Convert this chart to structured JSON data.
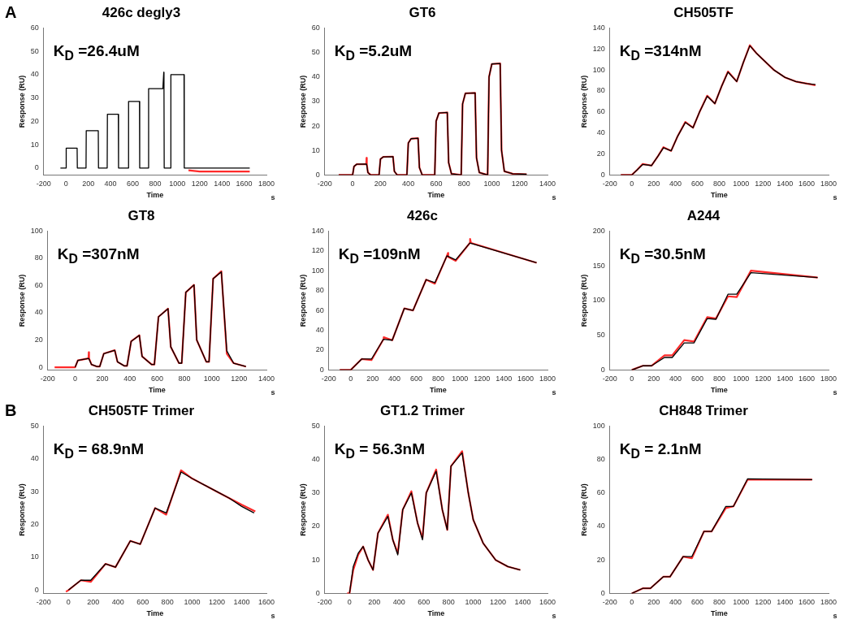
{
  "chart_data": [
    {
      "type": "line",
      "title": "426c degly3",
      "subtitle": "K$_{D}$ =26.4uM",
      "xlabel": "Time",
      "ylabel": "Response (RU)",
      "annotations": [
        "A",
        "s"
      ],
      "xlim": [
        -200,
        1800
      ],
      "xticks": [
        -200,
        0,
        200,
        400,
        600,
        800,
        1000,
        1200,
        1400,
        1600,
        1800
      ],
      "ylim": [
        -3,
        60
      ],
      "yticks": [
        0,
        10,
        20,
        30,
        40,
        50,
        60
      ],
      "grid": false,
      "series": [
        {
          "color": "#ff2a2a",
          "x": [
            1100,
            1200,
            1650
          ],
          "values": [
            -1,
            -1.5,
            -1.5
          ]
        },
        {
          "color": "#000000",
          "x": [
            -50,
            0,
            2,
            100,
            102,
            180,
            182,
            290,
            292,
            370,
            372,
            470,
            472,
            560,
            562,
            660,
            662,
            740,
            742,
            870,
            878,
            880,
            882,
            940,
            942,
            1060,
            1062,
            1100,
            1650
          ],
          "values": [
            0,
            0,
            8.5,
            8.5,
            0,
            0,
            16,
            16,
            0,
            0,
            23,
            23,
            0,
            0,
            28.5,
            28.5,
            0,
            0,
            34,
            34,
            41,
            34,
            0,
            0,
            40,
            40,
            0,
            0,
            0
          ]
        }
      ]
    },
    {
      "type": "line",
      "title": "GT6",
      "subtitle": "K$_{D}$ =5.2uM",
      "xlabel": "Time",
      "ylabel": "Response (RU)",
      "annotations": [
        "s"
      ],
      "xlim": [
        -200,
        1400
      ],
      "xticks": [
        -200,
        0,
        200,
        400,
        600,
        800,
        1000,
        1200,
        1400
      ],
      "ylim": [
        0,
        60
      ],
      "yticks": [
        0,
        10,
        20,
        30,
        40,
        50,
        60
      ],
      "grid": false,
      "series": [
        {
          "color": "#ff2a2a",
          "x": [
            -100,
            0,
            10,
            30,
            98,
            100,
            102,
            110,
            130,
            190,
            200,
            220,
            290,
            300,
            320,
            390,
            400,
            420,
            470,
            480,
            500,
            590,
            600,
            620,
            680,
            690,
            710,
            780,
            790,
            810,
            880,
            890,
            910,
            970,
            980,
            1000,
            1060,
            1070,
            1090,
            1150,
            1250
          ],
          "values": [
            0,
            0,
            3.5,
            4.4,
            4.5,
            7,
            4.5,
            1,
            0,
            0,
            6.5,
            7.4,
            7.5,
            1.5,
            0,
            0,
            13,
            14.8,
            15,
            3,
            0,
            0,
            22,
            25.3,
            25.5,
            5,
            0.5,
            0,
            29,
            33.3,
            33.5,
            7,
            1,
            0,
            40,
            45.3,
            45.5,
            10,
            1.5,
            0.5,
            0.3
          ]
        },
        {
          "color": "#000000",
          "x": [
            -100,
            0,
            10,
            30,
            100,
            110,
            130,
            190,
            200,
            220,
            290,
            300,
            320,
            390,
            400,
            420,
            470,
            480,
            500,
            590,
            600,
            620,
            680,
            690,
            710,
            780,
            790,
            810,
            880,
            890,
            910,
            970,
            980,
            1000,
            1060,
            1070,
            1090,
            1150,
            1250
          ],
          "values": [
            0,
            0,
            3.5,
            4.4,
            4.5,
            1,
            0,
            0,
            6.5,
            7.4,
            7.5,
            1.5,
            0,
            0,
            13,
            14.8,
            15,
            3,
            0,
            0,
            22,
            25.3,
            25.5,
            5,
            0.5,
            0,
            29,
            33.3,
            33.5,
            7,
            1,
            0,
            40,
            45.3,
            45.5,
            10,
            1.5,
            0.5,
            0.3
          ]
        }
      ]
    },
    {
      "type": "line",
      "title": "CH505TF",
      "subtitle": "K$_{D}$ =314nM",
      "xlabel": "Time",
      "ylabel": "Response (RU)",
      "annotations": [
        "s"
      ],
      "xlim": [
        -200,
        1800
      ],
      "xticks": [
        -200,
        0,
        200,
        400,
        600,
        800,
        1000,
        1200,
        1400,
        1600,
        1800
      ],
      "ylim": [
        0,
        140
      ],
      "yticks": [
        0,
        20,
        40,
        60,
        80,
        100,
        120,
        140
      ],
      "grid": false,
      "series": [
        {
          "color": "#ff2a2a",
          "x": [
            -100,
            0,
            50,
            100,
            180,
            240,
            290,
            360,
            420,
            490,
            560,
            620,
            690,
            760,
            820,
            880,
            960,
            1020,
            1080,
            1140,
            1200,
            1300,
            1400,
            1500,
            1600,
            1680
          ],
          "values": [
            0,
            0,
            5,
            10.5,
            9,
            18,
            26.5,
            23,
            37,
            50.5,
            45,
            60,
            75.5,
            68,
            84,
            98.5,
            89,
            107,
            123.5,
            116,
            110,
            100,
            93,
            89,
            87,
            85.5
          ]
        },
        {
          "color": "#000000",
          "x": [
            -100,
            0,
            50,
            100,
            180,
            240,
            290,
            360,
            420,
            490,
            560,
            620,
            690,
            760,
            820,
            880,
            960,
            1020,
            1080,
            1140,
            1200,
            1300,
            1400,
            1500,
            1600,
            1680
          ],
          "values": [
            0,
            0,
            5,
            10,
            9,
            18,
            26,
            23,
            37,
            50,
            45,
            60,
            75,
            68,
            84,
            98,
            89,
            107,
            123,
            116,
            110,
            100,
            93,
            89,
            87,
            86
          ]
        }
      ]
    },
    {
      "type": "line",
      "title": "GT8",
      "subtitle": "K$_{D}$ =307nM",
      "xlabel": "Time",
      "ylabel": "Response (RU)",
      "annotations": [
        "s"
      ],
      "xlim": [
        -200,
        1400
      ],
      "xticks": [
        -200,
        0,
        200,
        400,
        600,
        800,
        1000,
        1200,
        1400
      ],
      "ylim": [
        -2,
        100
      ],
      "yticks": [
        0,
        20,
        40,
        60,
        80,
        100
      ],
      "grid": false,
      "series": [
        {
          "color": "#ff2a2a",
          "x": [
            -150,
            0,
            20,
            98,
            100,
            102,
            120,
            160,
            180,
            210,
            290,
            310,
            360,
            380,
            410,
            470,
            490,
            560,
            580,
            610,
            680,
            700,
            760,
            780,
            810,
            870,
            890,
            960,
            980,
            1010,
            1070,
            1110,
            1160,
            1250
          ],
          "values": [
            0,
            0,
            5,
            6.5,
            11,
            6.5,
            2,
            0.5,
            0.5,
            10,
            12.5,
            4,
            1,
            1,
            19,
            23.5,
            8,
            2,
            2,
            37,
            43,
            15,
            3,
            3,
            55,
            60.5,
            20,
            4,
            4,
            65,
            70.5,
            10,
            3,
            0.5
          ]
        },
        {
          "color": "#000000",
          "x": [
            0,
            20,
            100,
            120,
            160,
            180,
            210,
            290,
            310,
            360,
            380,
            410,
            470,
            490,
            560,
            580,
            610,
            680,
            700,
            760,
            780,
            810,
            870,
            890,
            960,
            980,
            1010,
            1070,
            1110,
            1160,
            1250
          ],
          "values": [
            0,
            5,
            6.5,
            2,
            0.5,
            0.5,
            10,
            12.5,
            4,
            1,
            1,
            19,
            23.5,
            8,
            2,
            2,
            37,
            43,
            15,
            3,
            3,
            55,
            60.5,
            20,
            4,
            4,
            65,
            70,
            12,
            3,
            0.5
          ]
        }
      ]
    },
    {
      "type": "line",
      "title": "426c",
      "subtitle": "K$_{D}$ =109nM",
      "xlabel": "Time",
      "ylabel": "Response (RU)",
      "annotations": [
        "s"
      ],
      "xlim": [
        -200,
        1800
      ],
      "xticks": [
        -200,
        0,
        200,
        400,
        600,
        800,
        1000,
        1200,
        1400,
        1600,
        1800
      ],
      "ylim": [
        0,
        140
      ],
      "yticks": [
        0,
        20,
        40,
        60,
        80,
        100,
        120,
        140
      ],
      "grid": false,
      "series": [
        {
          "color": "#ff2a2a",
          "x": [
            -100,
            0,
            100,
            190,
            300,
            302,
            380,
            490,
            570,
            690,
            770,
            880,
            890,
            892,
            960,
            1090,
            1092,
            1100,
            1700
          ],
          "values": [
            0,
            0,
            11,
            10,
            31,
            33,
            30,
            62,
            60,
            91,
            87,
            115,
            118,
            114,
            110,
            128,
            132,
            128,
            108
          ]
        },
        {
          "color": "#000000",
          "x": [
            -100,
            0,
            100,
            190,
            300,
            380,
            490,
            570,
            690,
            770,
            880,
            960,
            1090,
            1700
          ],
          "values": [
            0,
            0,
            11,
            11,
            31,
            30,
            62,
            60,
            91,
            88,
            115,
            111,
            128,
            108
          ]
        }
      ]
    },
    {
      "type": "line",
      "title": "A244",
      "subtitle": "K$_{D}$ =30.5nM",
      "xlabel": "Time",
      "ylabel": "Response (RU)",
      "annotations": [
        "s"
      ],
      "xlim": [
        -200,
        1800
      ],
      "xticks": [
        -200,
        0,
        200,
        400,
        600,
        800,
        1000,
        1200,
        1400,
        1600,
        1800
      ],
      "ylim": [
        0,
        200
      ],
      "yticks": [
        0,
        50,
        100,
        150,
        200
      ],
      "grid": false,
      "series": [
        {
          "color": "#ff2a2a",
          "x": [
            0,
            100,
            180,
            300,
            370,
            480,
            570,
            690,
            770,
            880,
            960,
            1090,
            1700
          ],
          "values": [
            0,
            6,
            6,
            21,
            21,
            43,
            41,
            76,
            74,
            106,
            105,
            143,
            133
          ]
        },
        {
          "color": "#000000",
          "x": [
            0,
            100,
            180,
            300,
            370,
            480,
            570,
            690,
            770,
            880,
            960,
            1090,
            1700
          ],
          "values": [
            0,
            6,
            6,
            18,
            18,
            39,
            39,
            74,
            73,
            109,
            109,
            140,
            133
          ]
        }
      ]
    },
    {
      "type": "line",
      "title": "CH505TF Trimer",
      "subtitle": "K$_{D}$ = 68.9nM",
      "xlabel": "Time",
      "ylabel": "Response (RU)",
      "annotations": [
        "B",
        "s"
      ],
      "xlim": [
        -200,
        1600
      ],
      "xticks": [
        -200,
        0,
        200,
        400,
        600,
        800,
        1000,
        1200,
        1400,
        1600
      ],
      "ylim": [
        -1,
        50
      ],
      "yticks": [
        0,
        10,
        20,
        30,
        40,
        50
      ],
      "grid": false,
      "series": [
        {
          "color": "#ff2a2a",
          "x": [
            -20,
            0,
            100,
            180,
            300,
            380,
            500,
            580,
            700,
            790,
            910,
            1000,
            1100,
            1200,
            1300,
            1400,
            1510
          ],
          "values": [
            -0.5,
            0,
            3,
            2.5,
            8,
            7,
            15,
            14,
            25,
            23,
            36.5,
            34,
            32,
            30,
            28,
            26,
            24
          ]
        },
        {
          "color": "#000000",
          "x": [
            0,
            100,
            180,
            300,
            380,
            500,
            580,
            700,
            790,
            910,
            1000,
            1100,
            1200,
            1300,
            1400,
            1500
          ],
          "values": [
            0,
            3,
            3,
            8,
            7,
            15,
            14,
            25,
            23.5,
            36,
            34,
            32,
            30,
            28,
            25.5,
            23.5
          ]
        }
      ]
    },
    {
      "type": "line",
      "title": "GT1.2 Trimer",
      "subtitle": "K$_{D}$ = 56.3nM",
      "xlabel": "Time",
      "ylabel": "Response (RU)",
      "annotations": [
        "s"
      ],
      "xlim": [
        -200,
        1600
      ],
      "xticks": [
        -200,
        0,
        200,
        400,
        600,
        800,
        1000,
        1200,
        1400,
        1600
      ],
      "ylim": [
        0,
        50
      ],
      "yticks": [
        0,
        10,
        20,
        30,
        40,
        50
      ],
      "grid": false,
      "series": [
        {
          "color": "#ff2a2a",
          "x": [
            -20,
            0,
            30,
            70,
            110,
            150,
            190,
            230,
            310,
            350,
            390,
            430,
            500,
            550,
            590,
            620,
            700,
            750,
            790,
            820,
            910,
            960,
            1000,
            1080,
            1180,
            1280,
            1380
          ],
          "values": [
            0,
            0,
            7,
            11.5,
            14,
            10,
            7,
            18,
            23.5,
            16,
            12,
            25,
            30.5,
            21,
            16.5,
            30,
            37,
            25,
            19,
            38,
            42.5,
            30,
            22,
            15,
            10,
            8,
            7
          ]
        },
        {
          "color": "#000000",
          "x": [
            0,
            30,
            70,
            110,
            150,
            190,
            230,
            310,
            350,
            390,
            430,
            500,
            550,
            590,
            620,
            700,
            750,
            790,
            820,
            910,
            960,
            1000,
            1080,
            1180,
            1280,
            1380
          ],
          "values": [
            0,
            8,
            12,
            14,
            10,
            7,
            18,
            23,
            16,
            11.5,
            25,
            30,
            21,
            16,
            30,
            36.5,
            25,
            19,
            38,
            42,
            30,
            22,
            15,
            10,
            8,
            7
          ]
        }
      ]
    },
    {
      "type": "line",
      "title": "CH848 Trimer",
      "subtitle": "K$_{D}$ = 2.1nM",
      "xlabel": "Time",
      "ylabel": "Response (RU)",
      "annotations": [
        "s"
      ],
      "xlim": [
        -200,
        1800
      ],
      "xticks": [
        -200,
        0,
        200,
        400,
        600,
        800,
        1000,
        1200,
        1400,
        1600,
        1800
      ],
      "ylim": [
        0,
        100
      ],
      "yticks": [
        0,
        20,
        40,
        60,
        80,
        100
      ],
      "grid": false,
      "series": [
        {
          "color": "#ff2a2a",
          "x": [
            0,
            100,
            170,
            290,
            350,
            470,
            550,
            660,
            730,
            860,
            930,
            1060,
            1650
          ],
          "values": [
            0,
            3,
            3,
            10,
            10,
            22,
            21,
            37,
            37,
            51,
            52,
            68,
            68
          ]
        },
        {
          "color": "#000000",
          "x": [
            0,
            100,
            170,
            290,
            350,
            470,
            550,
            660,
            730,
            860,
            930,
            1060,
            1650
          ],
          "values": [
            0,
            3,
            3,
            10,
            10,
            22,
            22,
            37,
            37,
            52,
            52,
            68.5,
            68
          ]
        }
      ]
    }
  ]
}
